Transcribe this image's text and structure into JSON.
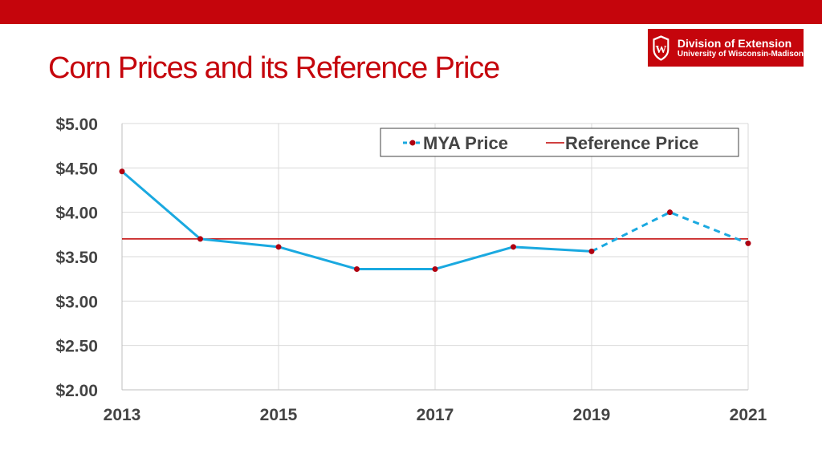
{
  "colors": {
    "brand": "#c5050c",
    "series": "#1aa9e0",
    "marker": "#b00010",
    "reference": "#c00000",
    "grid": "#d9d9d9"
  },
  "logo": {
    "line1": "Division of Extension",
    "line2": "University of Wisconsin-Madison",
    "icon": "wisconsin-crest"
  },
  "title": "Corn Prices and its Reference Price",
  "chart_data": {
    "type": "line",
    "x": [
      2013,
      2014,
      2015,
      2016,
      2017,
      2018,
      2019,
      2020,
      2021
    ],
    "series": [
      {
        "name": "MYA Price",
        "values": [
          4.46,
          3.7,
          3.61,
          3.36,
          3.36,
          3.61,
          3.56,
          4.0,
          3.65
        ],
        "projected_from_index": 6
      },
      {
        "name": "Reference Price",
        "values": [
          3.7,
          3.7,
          3.7,
          3.7,
          3.7,
          3.7,
          3.7,
          3.7,
          3.7
        ]
      }
    ],
    "xticks": [
      "2013",
      "2015",
      "2017",
      "2019",
      "2021"
    ],
    "yticks": [
      "$2.00",
      "$2.50",
      "$3.00",
      "$3.50",
      "$4.00",
      "$4.50",
      "$5.00"
    ],
    "ylim": [
      2.0,
      5.0
    ],
    "xlim": [
      2013,
      2021
    ],
    "grid": true,
    "legend": "top-right"
  }
}
